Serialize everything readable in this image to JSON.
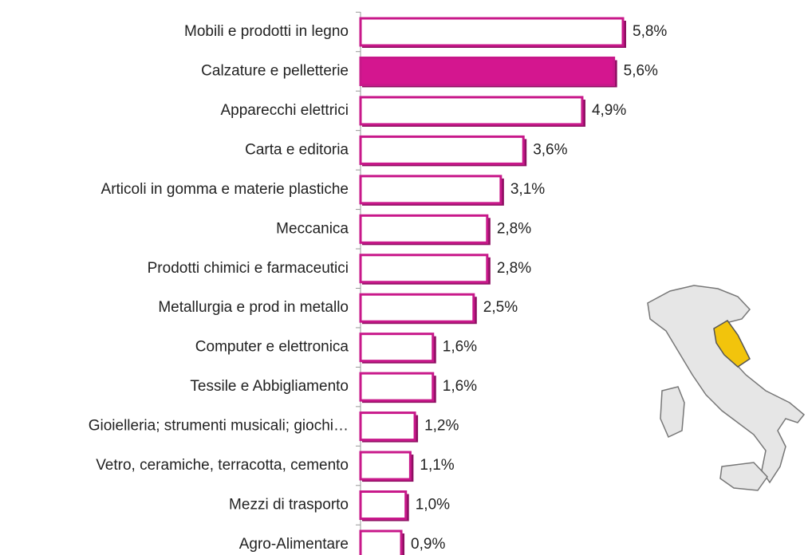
{
  "chart_data": {
    "type": "barh",
    "categories": [
      "Mobili e prodotti in legno",
      "Calzature e pelletterie",
      "Apparecchi elettrici",
      "Carta e editoria",
      "Articoli in gomma e materie plastiche",
      "Meccanica",
      "Prodotti chimici e farmaceutici",
      "Metallurgia e prod in metallo",
      "Computer e elettronica",
      "Tessile e Abbigliamento",
      "Gioielleria; strumenti musicali; giochi…",
      "Vetro, ceramiche, terracotta, cemento",
      "Mezzi di trasporto",
      "Agro-Alimentare"
    ],
    "values": [
      5.8,
      5.6,
      4.9,
      3.6,
      3.1,
      2.8,
      2.8,
      2.5,
      1.6,
      1.6,
      1.2,
      1.1,
      1.0,
      0.9
    ],
    "value_labels": [
      "5,8%",
      "5,6%",
      "4,9%",
      "3,6%",
      "3,1%",
      "2,8%",
      "2,8%",
      "2,5%",
      "1,6%",
      "1,6%",
      "1,2%",
      "1,1%",
      "1,0%",
      "0,9%"
    ],
    "color": "#c8188a",
    "bar_colors": [
      "#ffffff",
      "#d4168f",
      "#ffffff",
      "#ffffff",
      "#ffffff",
      "#ffffff",
      "#ffffff",
      "#ffffff",
      "#ffffff",
      "#ffffff",
      "#ffffff",
      "#ffffff",
      "#ffffff",
      "#ffffff"
    ]
  }
}
